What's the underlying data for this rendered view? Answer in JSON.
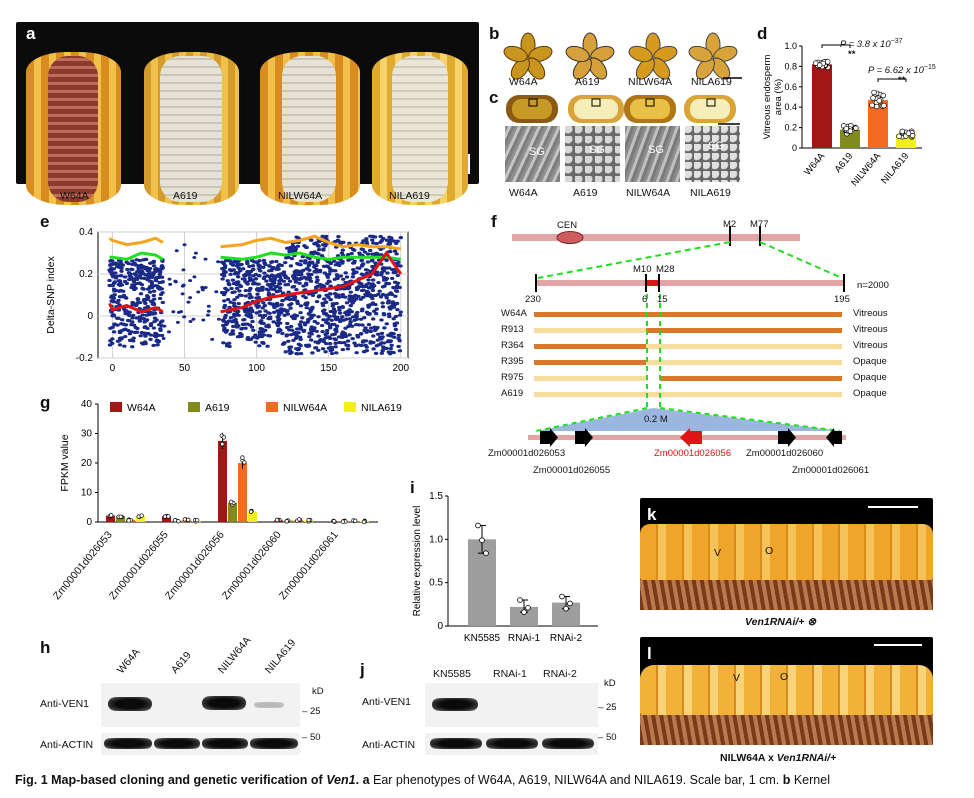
{
  "panels": {
    "a": {
      "label": "a",
      "ears": [
        "W64A",
        "A619",
        "NILW64A",
        "NILA619"
      ],
      "colors": {
        "yellow_kernel": "#e2a62a",
        "white_kernel": "#e6e3d6",
        "cob_red": "#8d3a2e"
      }
    },
    "b": {
      "label": "b",
      "kernels": [
        "W64A",
        "A619",
        "NILW64A",
        "NILA619"
      ]
    },
    "c": {
      "label": "c",
      "sem_labels": [
        "W64A",
        "A619",
        "NILW64A",
        "NILA619"
      ],
      "sg": "SG"
    },
    "d": {
      "label": "d",
      "p1": "P = 3.8 x 10",
      "p1_exp": "−37",
      "p2": "P = 6.62 x 10",
      "p2_exp": "−15",
      "stars": "**"
    },
    "e": {
      "label": "e"
    },
    "f": {
      "label": "f",
      "cen": "CEN",
      "m2": "M2",
      "m77": "M77",
      "m10": "M10",
      "m28": "M28",
      "n": "n=2000",
      "counts": [
        "230",
        "6",
        "15",
        "195"
      ],
      "rows": [
        {
          "line": "W64A",
          "pheno": "Vitreous"
        },
        {
          "line": "R913",
          "pheno": "Vitreous"
        },
        {
          "line": "R364",
          "pheno": "Vitreous"
        },
        {
          "line": "R395",
          "pheno": "Opaque"
        },
        {
          "line": "R975",
          "pheno": "Opaque"
        },
        {
          "line": "A619",
          "pheno": "Opaque"
        }
      ],
      "interval": "0.2 M",
      "genes_top": [
        "Zm00001d026053",
        "Zm00001d026056",
        "Zm00001d026060"
      ],
      "genes_bottom": [
        "Zm00001d026055",
        "Zm00001d026061"
      ],
      "colors": {
        "orange": "#d9772a",
        "pale": "#f8dda0",
        "chrom": "#e1a5a5",
        "tri": "#9bb6df",
        "red": "#e01414"
      }
    },
    "g": {
      "label": "g"
    },
    "h": {
      "label": "h",
      "lanes": [
        "W64A",
        "A619",
        "NILW64A",
        "NILA619"
      ],
      "anti_ven": "Anti-VEN1",
      "anti_actin": "Anti-ACTIN",
      "kd": "kD",
      "m25": "25",
      "m50": "50"
    },
    "i": {
      "label": "i"
    },
    "j": {
      "label": "j",
      "lanes": [
        "KN5585",
        "RNAi-1",
        "RNAi-2"
      ],
      "anti_ven": "Anti-VEN1",
      "anti_actin": "Anti-ACTIN",
      "kd": "kD",
      "m25": "25",
      "m50": "50"
    },
    "k": {
      "label": "k",
      "v": "V",
      "o": "O",
      "caption": "Ven1RNAi/+ ⊗"
    },
    "l": {
      "label": "l",
      "v": "V",
      "o": "O",
      "caption_prefix": "NILW64A x ",
      "caption_italic": "Ven1RNAi/+"
    }
  },
  "caption": {
    "fig": "Fig. 1",
    "title": "Map-based cloning and genetic verification of ",
    "gene": "Ven1",
    "title_end": ".",
    "a_tag": "a",
    "a_text": " Ear phenotypes of W64A, A619, NILW64A and NILA619. Scale bar, 1 cm. ",
    "b_tag": "b",
    "b_text": " Kernel"
  },
  "chart_data": [
    {
      "id": "d",
      "type": "bar",
      "categories": [
        "W64A",
        "A619",
        "NILW64A",
        "NILA619"
      ],
      "values": [
        0.82,
        0.18,
        0.47,
        0.14
      ],
      "errors": [
        0.02,
        0.03,
        0.05,
        0.02
      ],
      "colors": [
        "#a31616",
        "#7f8a1f",
        "#f26b21",
        "#f3ef1c"
      ],
      "ylabel": "Vitreous endosperm area (%)",
      "ylim": [
        0,
        1.0
      ],
      "yticks": [
        "0",
        "0.2",
        "0.4",
        "0.6",
        "0.8",
        "1.0"
      ]
    },
    {
      "id": "e",
      "type": "scatter",
      "ylabel": "Delta-SNP index",
      "xlim": [
        -10,
        205
      ],
      "ylim": [
        -0.2,
        0.4
      ],
      "xticks": [
        "0",
        "50",
        "100",
        "150",
        "200"
      ],
      "yticks": [
        "-0.2",
        "0",
        "0.2",
        "0.4"
      ],
      "series": [
        {
          "color": "#f5a41b",
          "x": [
            -2,
            0,
            10,
            20,
            30,
            35,
            50,
            75,
            90,
            100,
            110,
            120,
            130,
            140,
            150,
            160,
            170,
            180,
            190,
            200
          ],
          "y": [
            0.37,
            0.36,
            0.34,
            0.35,
            0.37,
            0.35,
            null,
            0.33,
            0.34,
            0.36,
            0.37,
            0.35,
            0.36,
            0.38,
            0.35,
            0.33,
            0.34,
            0.33,
            0.33,
            0.32
          ]
        },
        {
          "color": "#1ee01e",
          "x": [
            -2,
            0,
            10,
            20,
            30,
            35,
            50,
            75,
            90,
            100,
            110,
            120,
            130,
            140,
            150,
            160,
            170,
            180,
            190,
            200
          ],
          "y": [
            0.28,
            0.28,
            0.27,
            0.3,
            0.29,
            0.27,
            null,
            0.28,
            0.27,
            0.28,
            0.3,
            0.29,
            0.3,
            0.28,
            0.27,
            0.28,
            0.28,
            0.28,
            0.28,
            0.27
          ]
        },
        {
          "color": "#e01414",
          "x": [
            -2,
            0,
            10,
            20,
            30,
            35,
            50,
            75,
            90,
            100,
            110,
            120,
            130,
            140,
            150,
            160,
            170,
            180,
            190,
            200
          ],
          "y": [
            0.06,
            0.03,
            0.05,
            0.02,
            0.04,
            0.02,
            null,
            0.02,
            0.04,
            0.07,
            0.09,
            0.1,
            0.11,
            0.12,
            0.13,
            0.14,
            0.17,
            0.2,
            0.3,
            0.2
          ]
        }
      ],
      "scatter_color": "#1a2a86"
    },
    {
      "id": "g",
      "type": "bar",
      "ylabel": "FPKM value",
      "ylim": [
        0,
        40
      ],
      "yticks": [
        "0",
        "10",
        "20",
        "30",
        "40"
      ],
      "categories": [
        "Zm00001d026053",
        "Zm00001d026055",
        "Zm00001d026056",
        "Zm00001d026060",
        "Zm00001d026061"
      ],
      "series": [
        {
          "name": "W64A",
          "color": "#a31616",
          "values": [
            2.2,
            2.0,
            27.5,
            0.5,
            0.2
          ]
        },
        {
          "name": "A619",
          "color": "#7f8a1f",
          "values": [
            2.0,
            0.4,
            6.5,
            0.5,
            0.2
          ]
        },
        {
          "name": "NILW64A",
          "color": "#f26b21",
          "values": [
            0.8,
            0.6,
            20.0,
            0.6,
            0.3
          ]
        },
        {
          "name": "NILA619",
          "color": "#f3ef1c",
          "values": [
            2.0,
            0.4,
            3.5,
            0.5,
            0.2
          ]
        }
      ]
    },
    {
      "id": "i",
      "type": "bar",
      "ylabel": "Relative expression level",
      "ylim": [
        0,
        1.5
      ],
      "yticks": [
        "0",
        "0.5",
        "1.0",
        "1.5"
      ],
      "categories": [
        "KN5585",
        "RNAi-1",
        "RNAi-2"
      ],
      "values": [
        1.0,
        0.22,
        0.27
      ],
      "points": [
        [
          1.16,
          0.99,
          0.84
        ],
        [
          0.3,
          0.16,
          0.21
        ],
        [
          0.34,
          0.2,
          0.26
        ]
      ],
      "color": "#9e9e9e"
    }
  ]
}
